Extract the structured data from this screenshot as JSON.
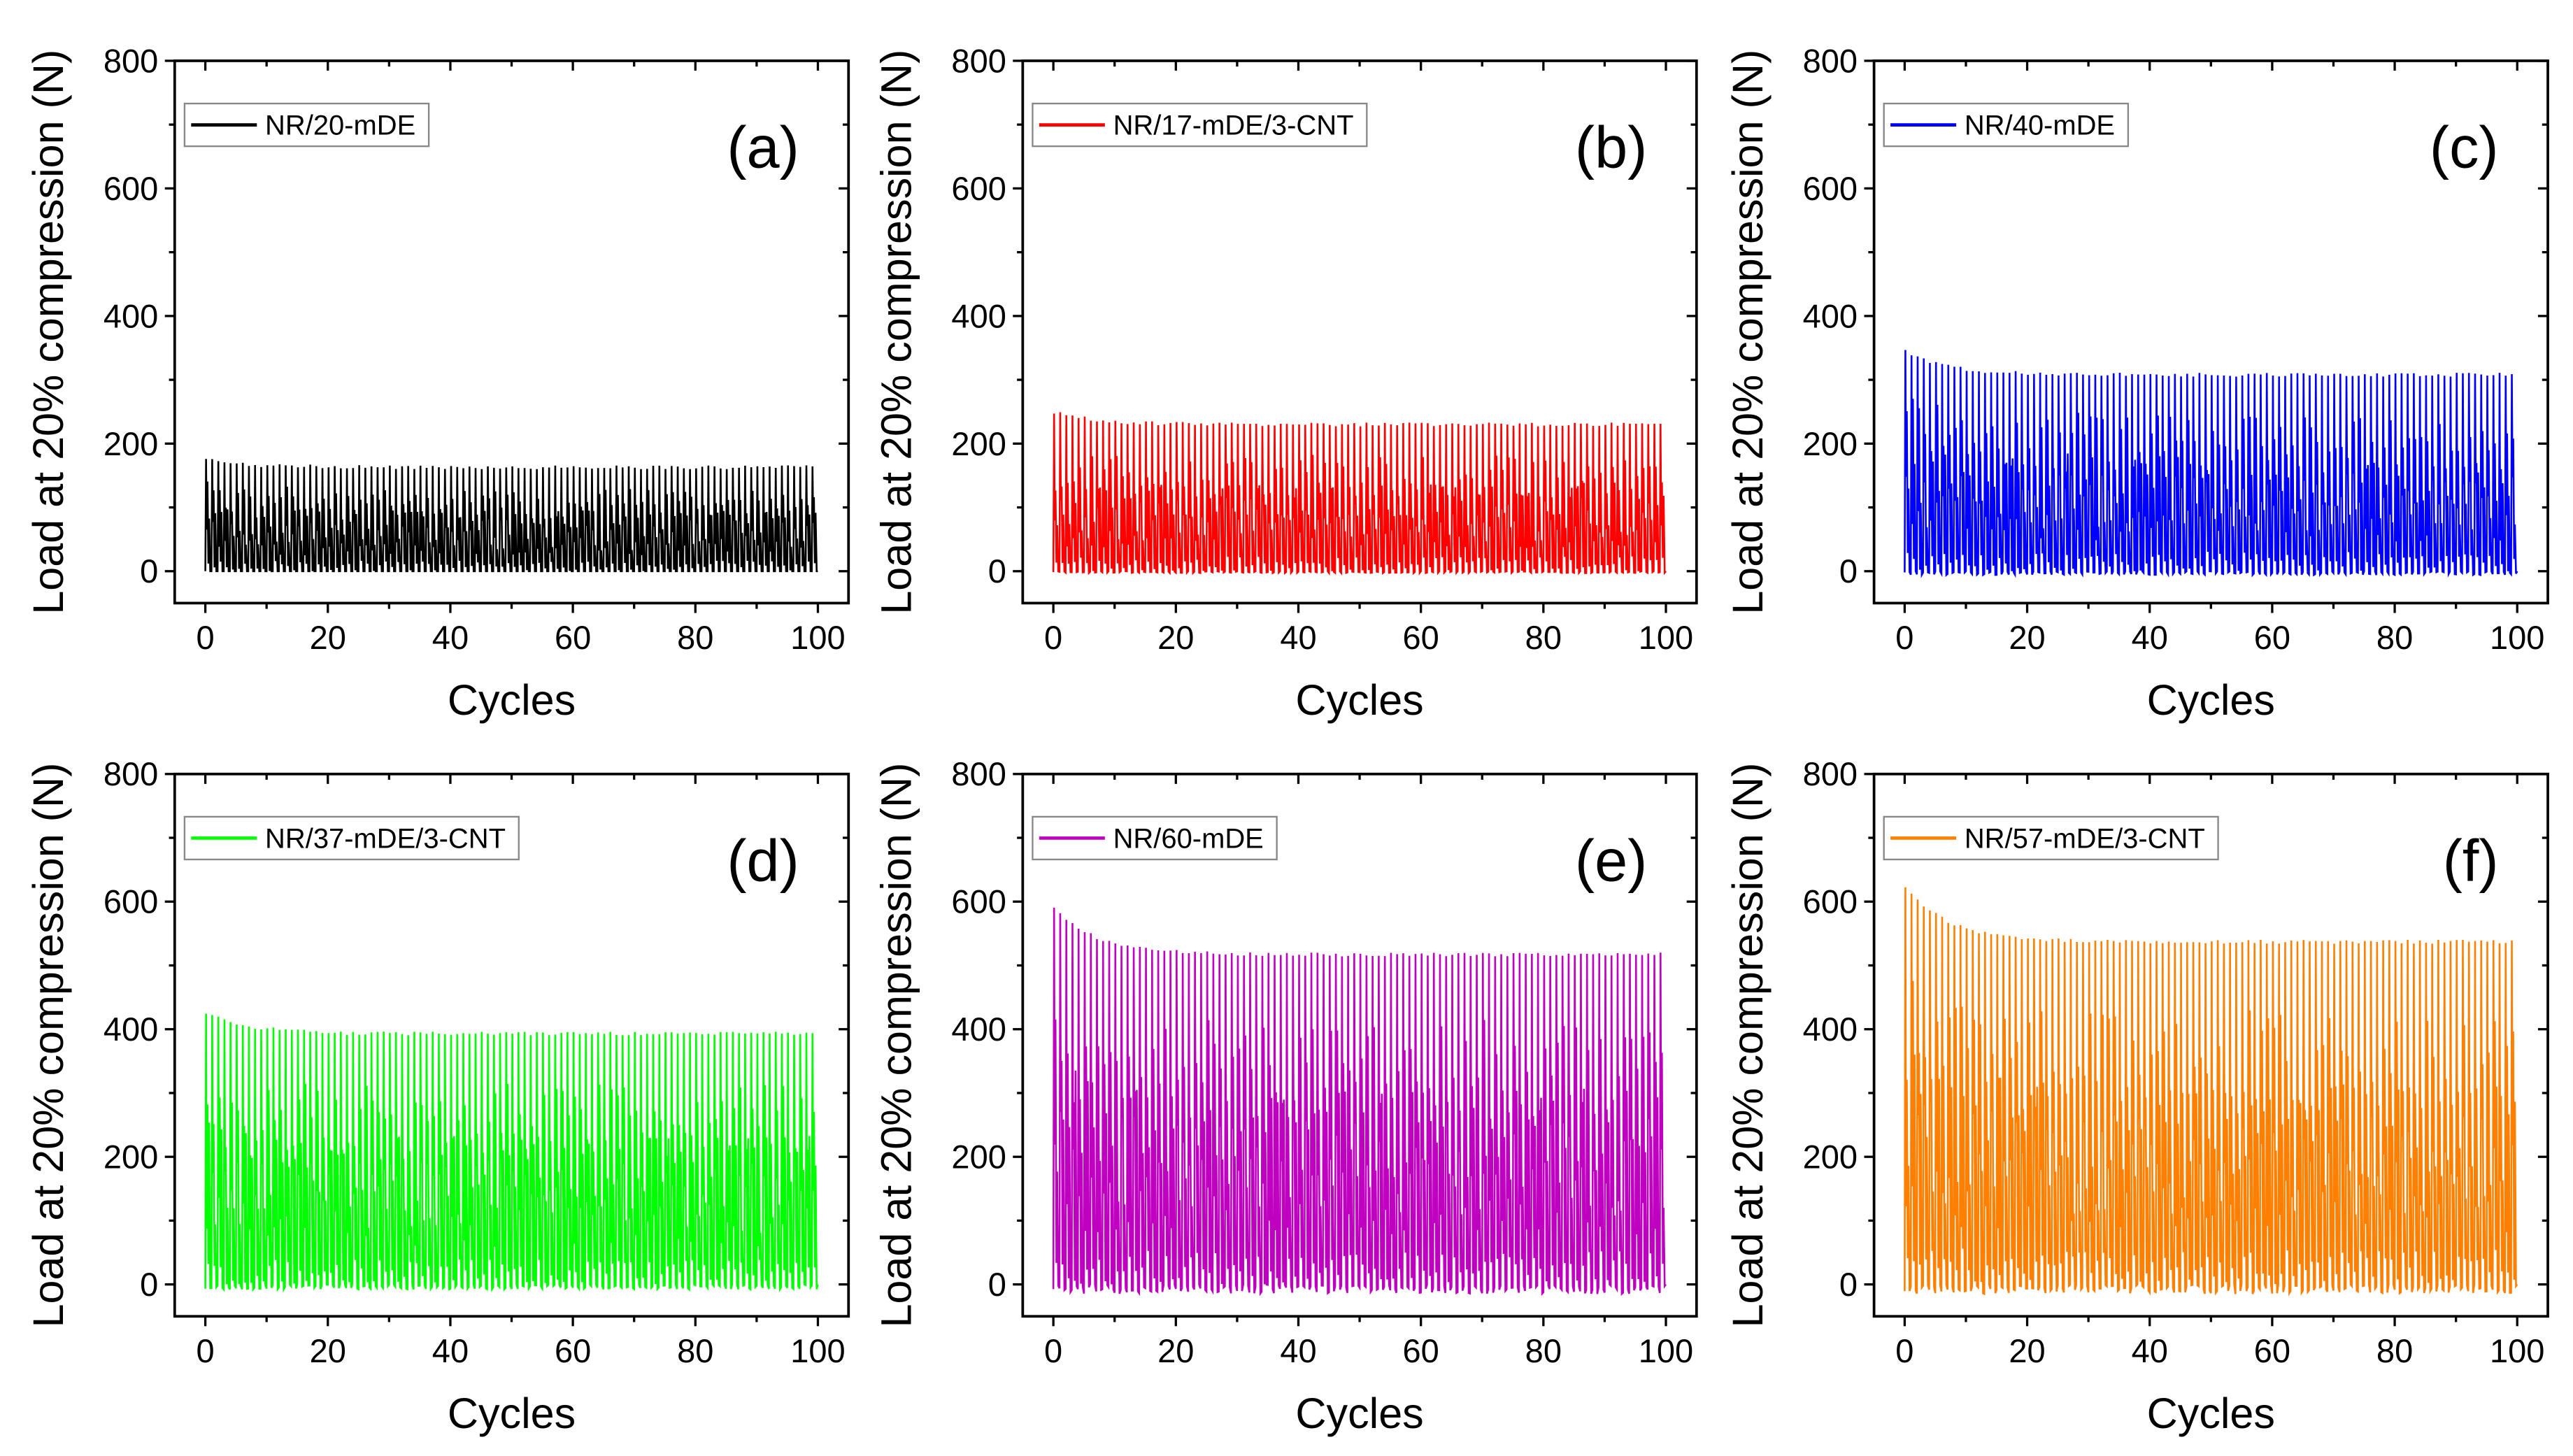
{
  "chart_data": [
    {
      "type": "line",
      "panel_label": "(a)",
      "legend": "NR/20-mDE",
      "color": "#000000",
      "xlabel": "Cycles",
      "ylabel": "Load at 20% compression (N)",
      "xlim": [
        -5,
        105
      ],
      "ylim": [
        -50,
        800
      ],
      "xticks": [
        0,
        20,
        40,
        60,
        80,
        100
      ],
      "yticks": [
        0,
        200,
        400,
        600,
        800
      ],
      "cycles": 100,
      "peak_first": 175,
      "peak_last": 163,
      "min": 0,
      "legend_position": "top-left",
      "grid": false
    },
    {
      "type": "line",
      "panel_label": "(b)",
      "legend": "NR/17-mDE/3-CNT",
      "color": "#ff0000",
      "xlabel": "Cycles",
      "ylabel": "Load at 20% compression (N)",
      "xlim": [
        -5,
        105
      ],
      "ylim": [
        -50,
        800
      ],
      "xticks": [
        0,
        20,
        40,
        60,
        80,
        100
      ],
      "yticks": [
        0,
        200,
        400,
        600,
        800
      ],
      "cycles": 100,
      "peak_first": 250,
      "peak_last": 230,
      "min": -3,
      "legend_position": "top-left",
      "grid": false
    },
    {
      "type": "line",
      "panel_label": "(c)",
      "legend": "NR/40-mDE",
      "color": "#0000ff",
      "xlabel": "Cycles",
      "ylabel": "Load at 20% compression (N)",
      "xlim": [
        -5,
        105
      ],
      "ylim": [
        -50,
        800
      ],
      "xticks": [
        0,
        20,
        40,
        60,
        80,
        100
      ],
      "yticks": [
        0,
        200,
        400,
        600,
        800
      ],
      "cycles": 100,
      "peak_first": 345,
      "peak_last": 308,
      "min": -6,
      "legend_position": "top-left",
      "grid": false
    },
    {
      "type": "line",
      "panel_label": "(d)",
      "legend": "NR/37-mDE/3-CNT",
      "color": "#00ff00",
      "xlabel": "Cycles",
      "ylabel": "Load at 20% compression (N)",
      "xlim": [
        -5,
        105
      ],
      "ylim": [
        -50,
        800
      ],
      "xticks": [
        0,
        20,
        40,
        60,
        80,
        100
      ],
      "yticks": [
        0,
        200,
        400,
        600,
        800
      ],
      "cycles": 100,
      "peak_first": 425,
      "peak_last": 393,
      "min": -8,
      "legend_position": "top-left",
      "grid": false
    },
    {
      "type": "line",
      "panel_label": "(e)",
      "legend": "NR/60-mDE",
      "color": "#c000c0",
      "xlabel": "Cycles",
      "ylabel": "Load at 20% compression (N)",
      "xlim": [
        -5,
        105
      ],
      "ylim": [
        -50,
        800
      ],
      "xticks": [
        0,
        20,
        40,
        60,
        80,
        100
      ],
      "yticks": [
        0,
        200,
        400,
        600,
        800
      ],
      "cycles": 100,
      "peak_first": 590,
      "peak_last": 517,
      "min": -15,
      "legend_position": "top-left",
      "grid": false
    },
    {
      "type": "line",
      "panel_label": "(f)",
      "legend": "NR/57-mDE/3-CNT",
      "color": "#ff8000",
      "xlabel": "Cycles",
      "ylabel": "Load at 20% compression (N)",
      "xlim": [
        -5,
        105
      ],
      "ylim": [
        -50,
        800
      ],
      "xticks": [
        0,
        20,
        40,
        60,
        80,
        100
      ],
      "yticks": [
        0,
        200,
        400,
        600,
        800
      ],
      "cycles": 100,
      "peak_first": 625,
      "peak_last": 537,
      "min": -15,
      "legend_position": "top-left",
      "grid": false
    }
  ]
}
